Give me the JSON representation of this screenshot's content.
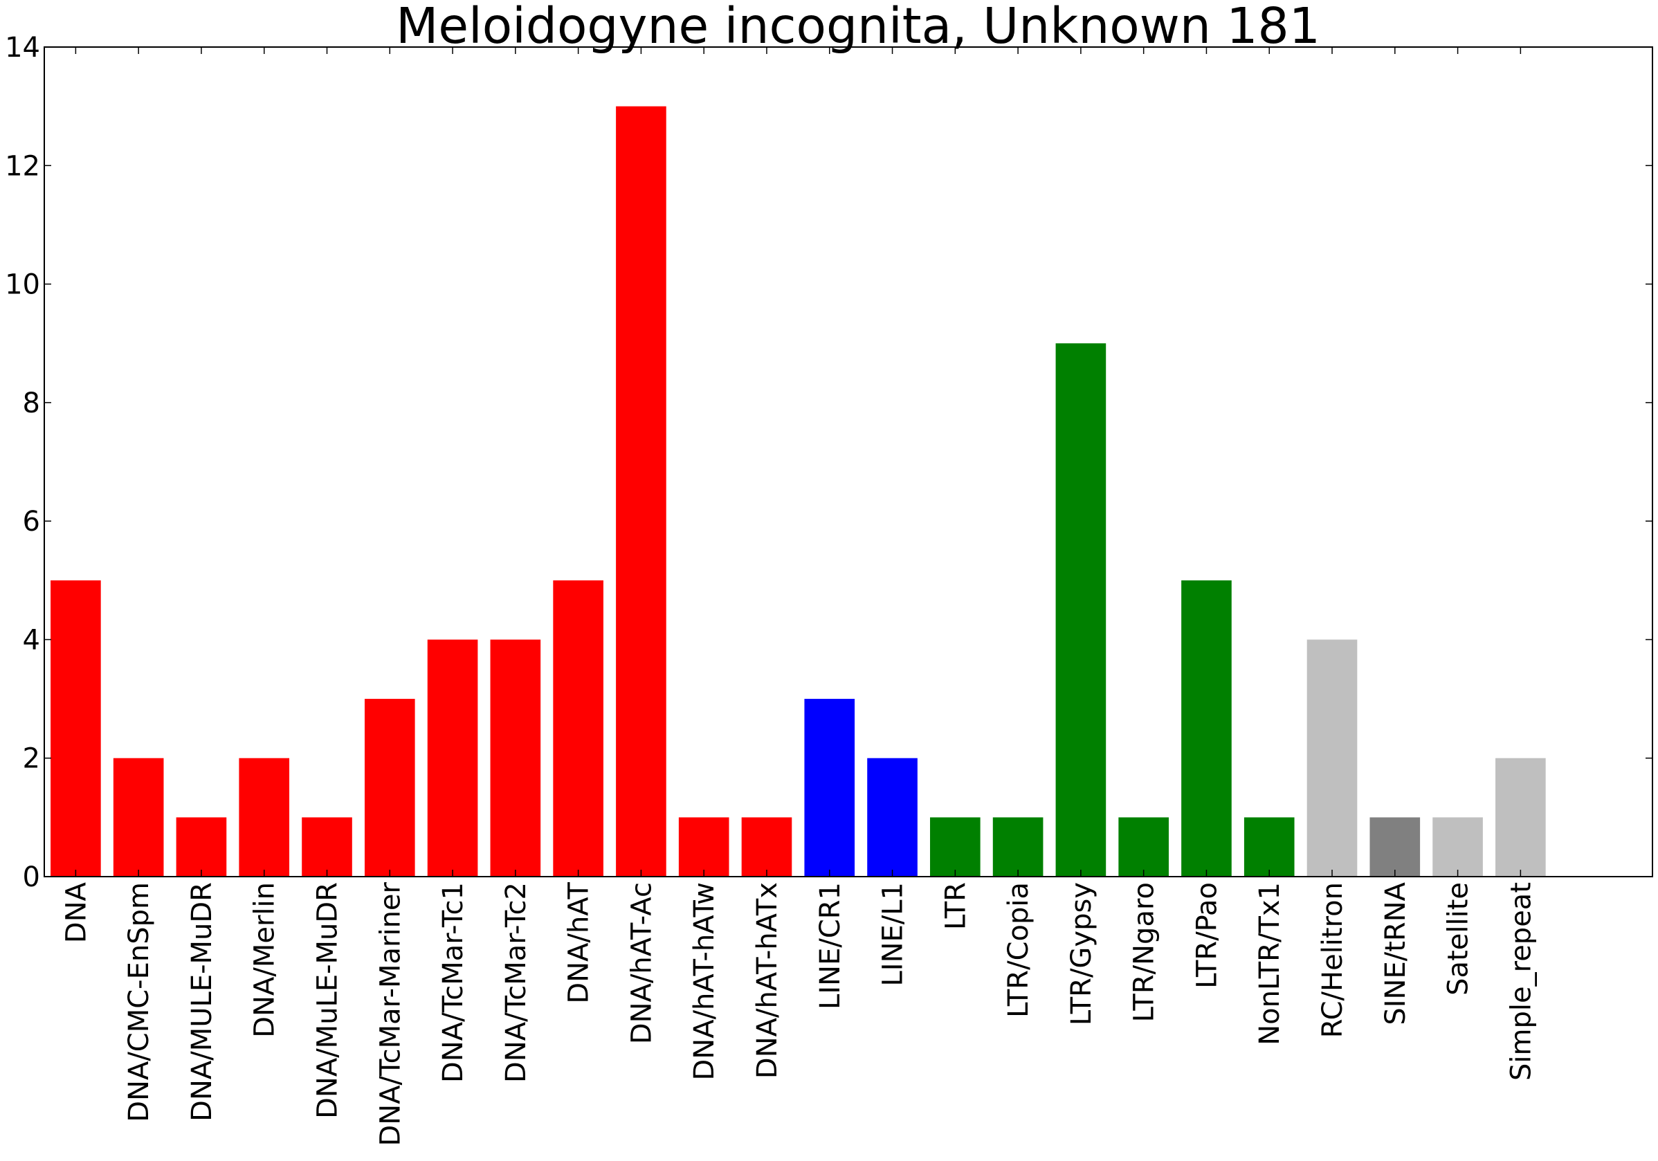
{
  "chart_data": {
    "type": "bar",
    "title": "Meloidogyne incognita, Unknown 181",
    "xlabel": "",
    "ylabel": "",
    "ylim": [
      0,
      14
    ],
    "yticks": [
      0,
      2,
      4,
      6,
      8,
      10,
      12,
      14
    ],
    "grid": false,
    "categories": [
      "DNA",
      "DNA/CMC-EnSpm",
      "DNA/MULE-MuDR",
      "DNA/Merlin",
      "DNA/MuLE-MuDR",
      "DNA/TcMar-Mariner",
      "DNA/TcMar-Tc1",
      "DNA/TcMar-Tc2",
      "DNA/hAT",
      "DNA/hAT-Ac",
      "DNA/hAT-hATw",
      "DNA/hAT-hATx",
      "LINE/CR1",
      "LINE/L1",
      "LTR",
      "LTR/Copia",
      "LTR/Gypsy",
      "LTR/Ngaro",
      "LTR/Pao",
      "NonLTR/Tx1",
      "RC/Helitron",
      "SINE/tRNA",
      "Satellite",
      "Simple_repeat"
    ],
    "values": [
      5,
      2,
      1,
      2,
      1,
      3,
      4,
      4,
      5,
      13,
      1,
      1,
      3,
      2,
      1,
      1,
      9,
      1,
      5,
      1,
      4,
      1,
      1,
      2
    ],
    "colors": [
      "#ff0000",
      "#ff0000",
      "#ff0000",
      "#ff0000",
      "#ff0000",
      "#ff0000",
      "#ff0000",
      "#ff0000",
      "#ff0000",
      "#ff0000",
      "#ff0000",
      "#ff0000",
      "#0000ff",
      "#0000ff",
      "#008000",
      "#008000",
      "#008000",
      "#008000",
      "#008000",
      "#008000",
      "#bfbfbf",
      "#808080",
      "#bfbfbf",
      "#bfbfbf"
    ]
  }
}
